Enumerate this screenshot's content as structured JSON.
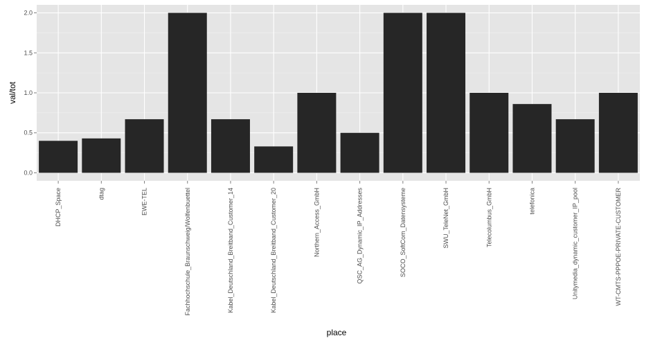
{
  "chart_data": {
    "type": "bar",
    "title": "",
    "xlabel": "place",
    "ylabel": "val/tot",
    "categories": [
      "DHCP_Space",
      "dtag",
      "EWE-TEL",
      "Fachhochschule_Braunschweig/Wolfenbuettel",
      "Kabel_Deutschland_Breitband_Customer_14",
      "Kabel_Deutschland_Breitband_Customer_20",
      "Northern_Access_GmbH",
      "QSC_AG_Dynamic_IP_Addresses",
      "SOCO_SoftCom_Datensysteme",
      "SWU_TeleNet_GmbH",
      "Telecolumbus_GmbH",
      "telefonica",
      "Unitymedia_dynamic_customer_IP_pool",
      "WT-CMTS-PPPOE-PRIVATE-CUSTOMER"
    ],
    "values": [
      0.4,
      0.43,
      0.67,
      2.0,
      0.67,
      0.33,
      1.0,
      0.5,
      2.0,
      2.0,
      1.0,
      0.86,
      0.67,
      1.0
    ],
    "ylim": [
      -0.1,
      2.1
    ],
    "yticks": [
      "0.0",
      "0.5",
      "1.0",
      "1.5",
      "2.0"
    ],
    "grid": true,
    "colors": {
      "panel": "#e5e5e5",
      "bar": "#262626",
      "grid_major": "#ffffff",
      "grid_minor": "#f2f2f2"
    }
  }
}
